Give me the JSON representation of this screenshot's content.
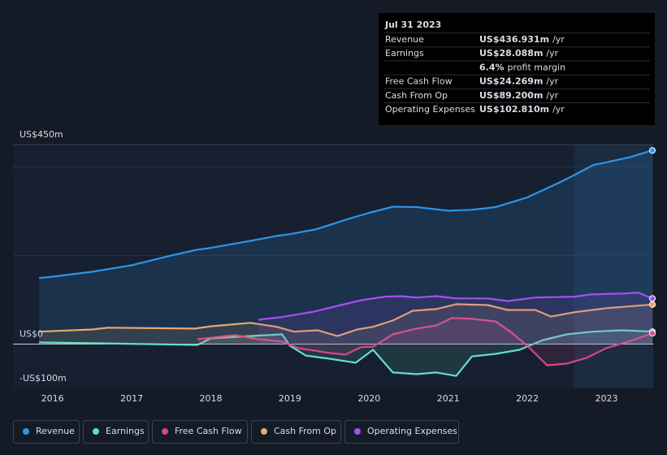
{
  "chart_data": {
    "type": "line",
    "xlim": [
      2015.5,
      2023.59
    ],
    "xticks": [
      2016,
      2017,
      2018,
      2019,
      2020,
      2021,
      2022,
      2023
    ],
    "ylim": [
      -100,
      450
    ],
    "yticks": [
      {
        "value": 450,
        "label": "US$450m"
      },
      {
        "value": 0,
        "label": "US$0"
      },
      {
        "value": -100,
        "label": "-US$100m"
      }
    ],
    "ygrid": [
      400,
      200
    ],
    "shaded_from": 2022.59,
    "series": [
      {
        "name": "Revenue",
        "color": "#2f95e6",
        "x": [
          2015.83,
          2016.0,
          2016.5,
          2017.0,
          2017.5,
          2017.83,
          2018.0,
          2018.5,
          2018.83,
          2019.0,
          2019.33,
          2019.75,
          2020.0,
          2020.3,
          2020.6,
          2021.0,
          2021.3,
          2021.6,
          2022.0,
          2022.4,
          2022.6,
          2022.83,
          2023.0,
          2023.3,
          2023.58
        ],
        "values": [
          149,
          152,
          163,
          178,
          200,
          213,
          217,
          233,
          244,
          248,
          259,
          283,
          296,
          310,
          309,
          301,
          303,
          309,
          331,
          364,
          382,
          404,
          410,
          422,
          436.931
        ]
      },
      {
        "name": "Earnings",
        "color": "#5fe0c8",
        "x": [
          2015.83,
          2017.83,
          2018.0,
          2018.5,
          2018.9,
          2019.0,
          2019.2,
          2019.5,
          2019.83,
          2020.05,
          2020.3,
          2020.6,
          2020.85,
          2021.1,
          2021.3,
          2021.6,
          2021.9,
          2022.2,
          2022.5,
          2022.83,
          2023.2,
          2023.58
        ],
        "values": [
          4,
          -2,
          13,
          18,
          22,
          -4,
          -26,
          -33,
          -42,
          -13,
          -64,
          -68,
          -64,
          -72,
          -28,
          -22,
          -13,
          9,
          22,
          28,
          31,
          28.088
        ]
      },
      {
        "name": "Free Cash Flow",
        "color": "#d9468a",
        "x": [
          2017.83,
          2018.3,
          2018.6,
          2018.9,
          2019.1,
          2019.5,
          2019.7,
          2019.9,
          2020.05,
          2020.3,
          2020.6,
          2020.85,
          2021.05,
          2021.3,
          2021.6,
          2021.8,
          2022.0,
          2022.25,
          2022.5,
          2022.75,
          2023.0,
          2023.3,
          2023.58
        ],
        "values": [
          11,
          20,
          11,
          6,
          -9,
          -20,
          -24,
          -7,
          -6,
          22,
          35,
          42,
          59,
          57,
          51,
          26,
          -4,
          -48,
          -44,
          -31,
          -9,
          7,
          24.269
        ]
      },
      {
        "name": "Cash From Op",
        "color": "#e8a96a",
        "x": [
          2015.83,
          2016.5,
          2016.7,
          2017.8,
          2018.0,
          2018.5,
          2018.83,
          2019.05,
          2019.35,
          2019.6,
          2019.85,
          2020.05,
          2020.3,
          2020.55,
          2020.85,
          2021.1,
          2021.5,
          2021.75,
          2022.1,
          2022.3,
          2022.6,
          2023.0,
          2023.58
        ],
        "values": [
          28,
          33,
          37,
          35,
          40,
          48,
          39,
          28,
          31,
          18,
          33,
          39,
          53,
          75,
          79,
          90,
          88,
          77,
          77,
          62,
          72,
          81,
          89.2
        ]
      },
      {
        "name": "Operating Expenses",
        "color": "#a64ff0",
        "x": [
          2018.6,
          2018.9,
          2019.3,
          2019.6,
          2019.9,
          2020.2,
          2020.4,
          2020.6,
          2020.85,
          2021.1,
          2021.5,
          2021.75,
          2022.1,
          2022.6,
          2022.8,
          2023.2,
          2023.4,
          2023.58
        ],
        "values": [
          55,
          61,
          73,
          86,
          99,
          107,
          108,
          105,
          108,
          103,
          103,
          97,
          105,
          107,
          112,
          114,
          116,
          102.81
        ]
      }
    ],
    "tooltip": {
      "title": "Jul 31 2023",
      "rows": [
        {
          "label": "Revenue",
          "value": "US$436.931m",
          "suffix": "/yr"
        },
        {
          "label": "Earnings",
          "value": "US$28.088m",
          "suffix": "/yr"
        },
        {
          "value": "6.4%",
          "suffix": "profit margin"
        },
        {
          "label": "Free Cash Flow",
          "value": "US$24.269m",
          "suffix": "/yr"
        },
        {
          "label": "Cash From Op",
          "value": "US$89.200m",
          "suffix": "/yr"
        },
        {
          "label": "Operating Expenses",
          "value": "US$102.810m",
          "suffix": "/yr"
        }
      ]
    }
  }
}
